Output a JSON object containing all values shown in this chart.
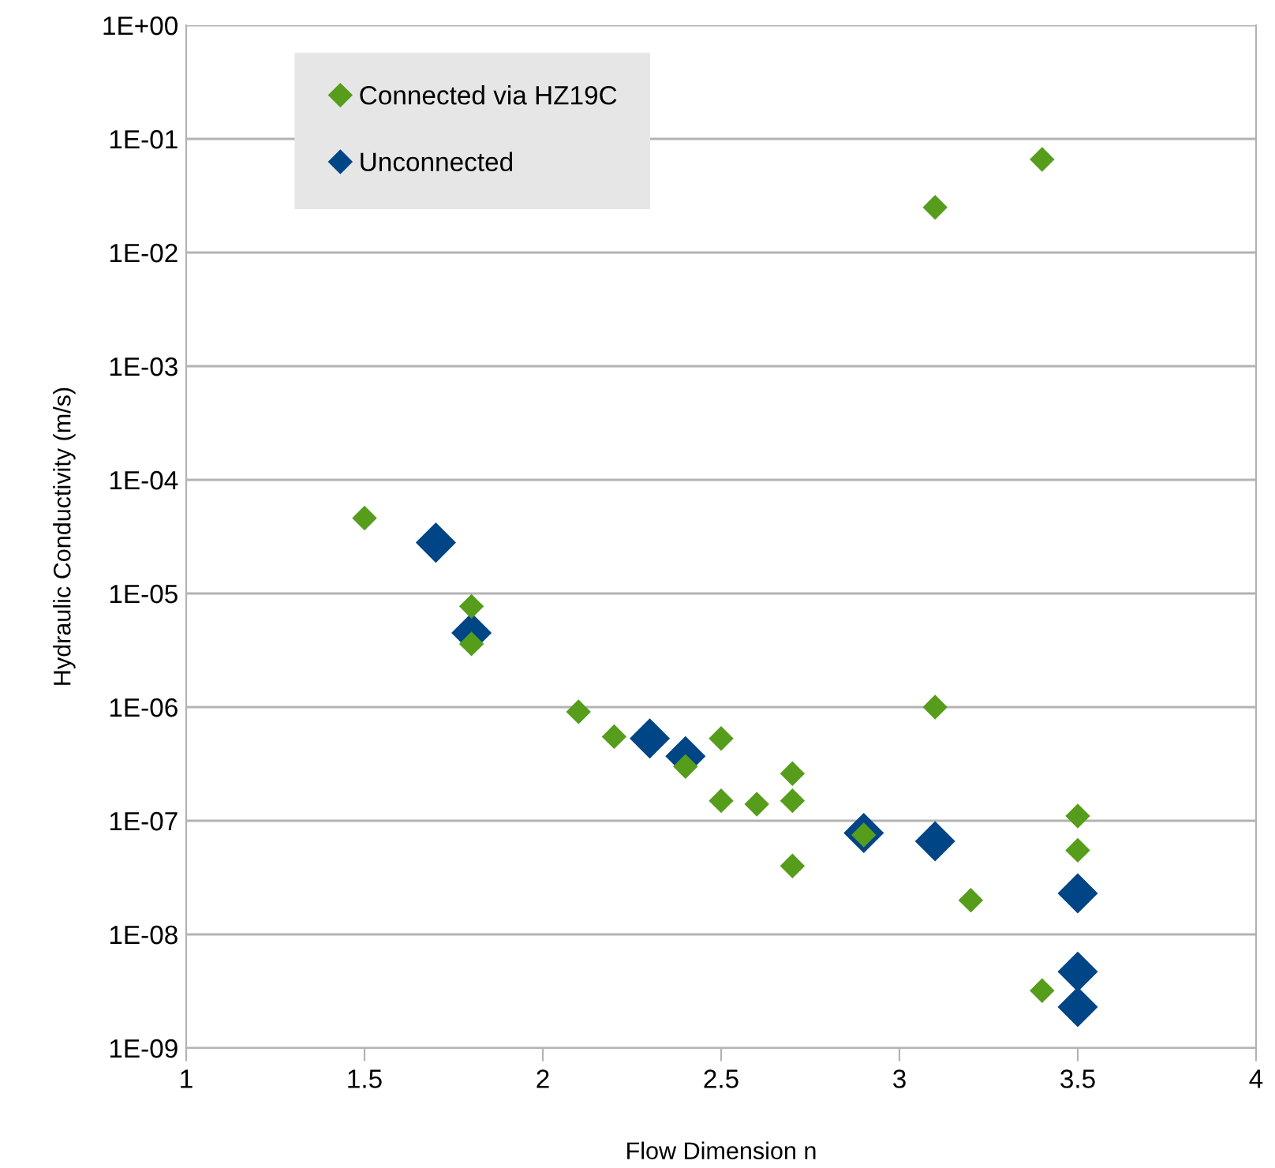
{
  "chart_data": {
    "type": "scatter",
    "xlabel": "Flow Dimension n",
    "ylabel": "Hydraulic Conductivity (m/s)",
    "log": "y",
    "xlim": [
      1,
      4
    ],
    "xticks": [
      1,
      1.5,
      2,
      2.5,
      3,
      3.5,
      4
    ],
    "ylim": [
      1e-09,
      1
    ],
    "yticks": [
      {
        "value": 1e-09,
        "label": "1E-09"
      },
      {
        "value": 1e-08,
        "label": "1E-08"
      },
      {
        "value": 1e-07,
        "label": "1E-07"
      },
      {
        "value": 1e-06,
        "label": "1E-06"
      },
      {
        "value": 1e-05,
        "label": "1E-05"
      },
      {
        "value": 0.0001,
        "label": "1E-04"
      },
      {
        "value": 0.001,
        "label": "1E-03"
      },
      {
        "value": 0.01,
        "label": "1E-02"
      },
      {
        "value": 0.1,
        "label": "1E-01"
      },
      {
        "value": 1,
        "label": "1E+00"
      }
    ],
    "grid": "y",
    "legend": "top left",
    "marker": "diamond",
    "series": [
      {
        "name": "Connected via HZ19C",
        "color": "#579d1c",
        "x": [
          1.5,
          1.8,
          1.8,
          2.1,
          2.2,
          2.4,
          2.5,
          2.5,
          2.6,
          2.7,
          2.7,
          2.7,
          2.9,
          3.1,
          3.1,
          3.2,
          3.4,
          3.4,
          3.5,
          3.5
        ],
        "values": [
          4.6e-05,
          7.7e-06,
          3.6e-06,
          9.1e-07,
          5.5e-07,
          3e-07,
          5.3e-07,
          1.5e-07,
          1.4e-07,
          2.6e-07,
          1.5e-07,
          4e-08,
          7.5e-08,
          0.025,
          1e-06,
          2e-08,
          0.066,
          3.2e-09,
          1.1e-07,
          5.5e-08
        ]
      },
      {
        "name": "Unconnected",
        "color": "#004586",
        "x": [
          1.7,
          1.8,
          2.3,
          2.4,
          2.9,
          3.1,
          3.5,
          3.5,
          3.5
        ],
        "values": [
          2.8e-05,
          4.5e-06,
          5.3e-07,
          3.7e-07,
          7.8e-08,
          6.6e-08,
          2.3e-08,
          4.7e-09,
          2.3e-09
        ]
      }
    ]
  }
}
